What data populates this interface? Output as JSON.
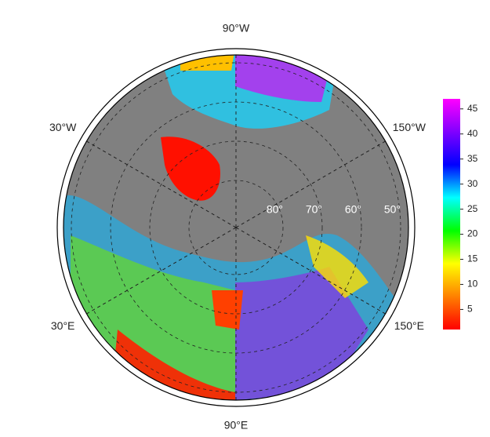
{
  "chart_data": {
    "type": "polar-map",
    "lon_labels": [
      {
        "value": -90,
        "label": "90°W"
      },
      {
        "value": -30,
        "label": "30°W"
      },
      {
        "value": -150,
        "label": "150°W"
      },
      {
        "value": 30,
        "label": "30°E"
      },
      {
        "value": 150,
        "label": "150°E"
      },
      {
        "value": 90,
        "label": "90°E"
      }
    ],
    "lat_labels": [
      {
        "value": 80,
        "label": "80°"
      },
      {
        "value": 70,
        "label": "70°"
      },
      {
        "value": 60,
        "label": "60°"
      },
      {
        "value": 50,
        "label": "50°"
      }
    ],
    "colorbar": {
      "clim": [
        1,
        47
      ],
      "ticks": [
        5,
        10,
        15,
        20,
        25,
        30,
        35,
        40,
        45
      ],
      "colormap": [
        "#ff0000",
        "#ff8000",
        "#ffff00",
        "#00ff00",
        "#00ffff",
        "#0000ff",
        "#8000ff",
        "#ff00ff"
      ]
    }
  }
}
